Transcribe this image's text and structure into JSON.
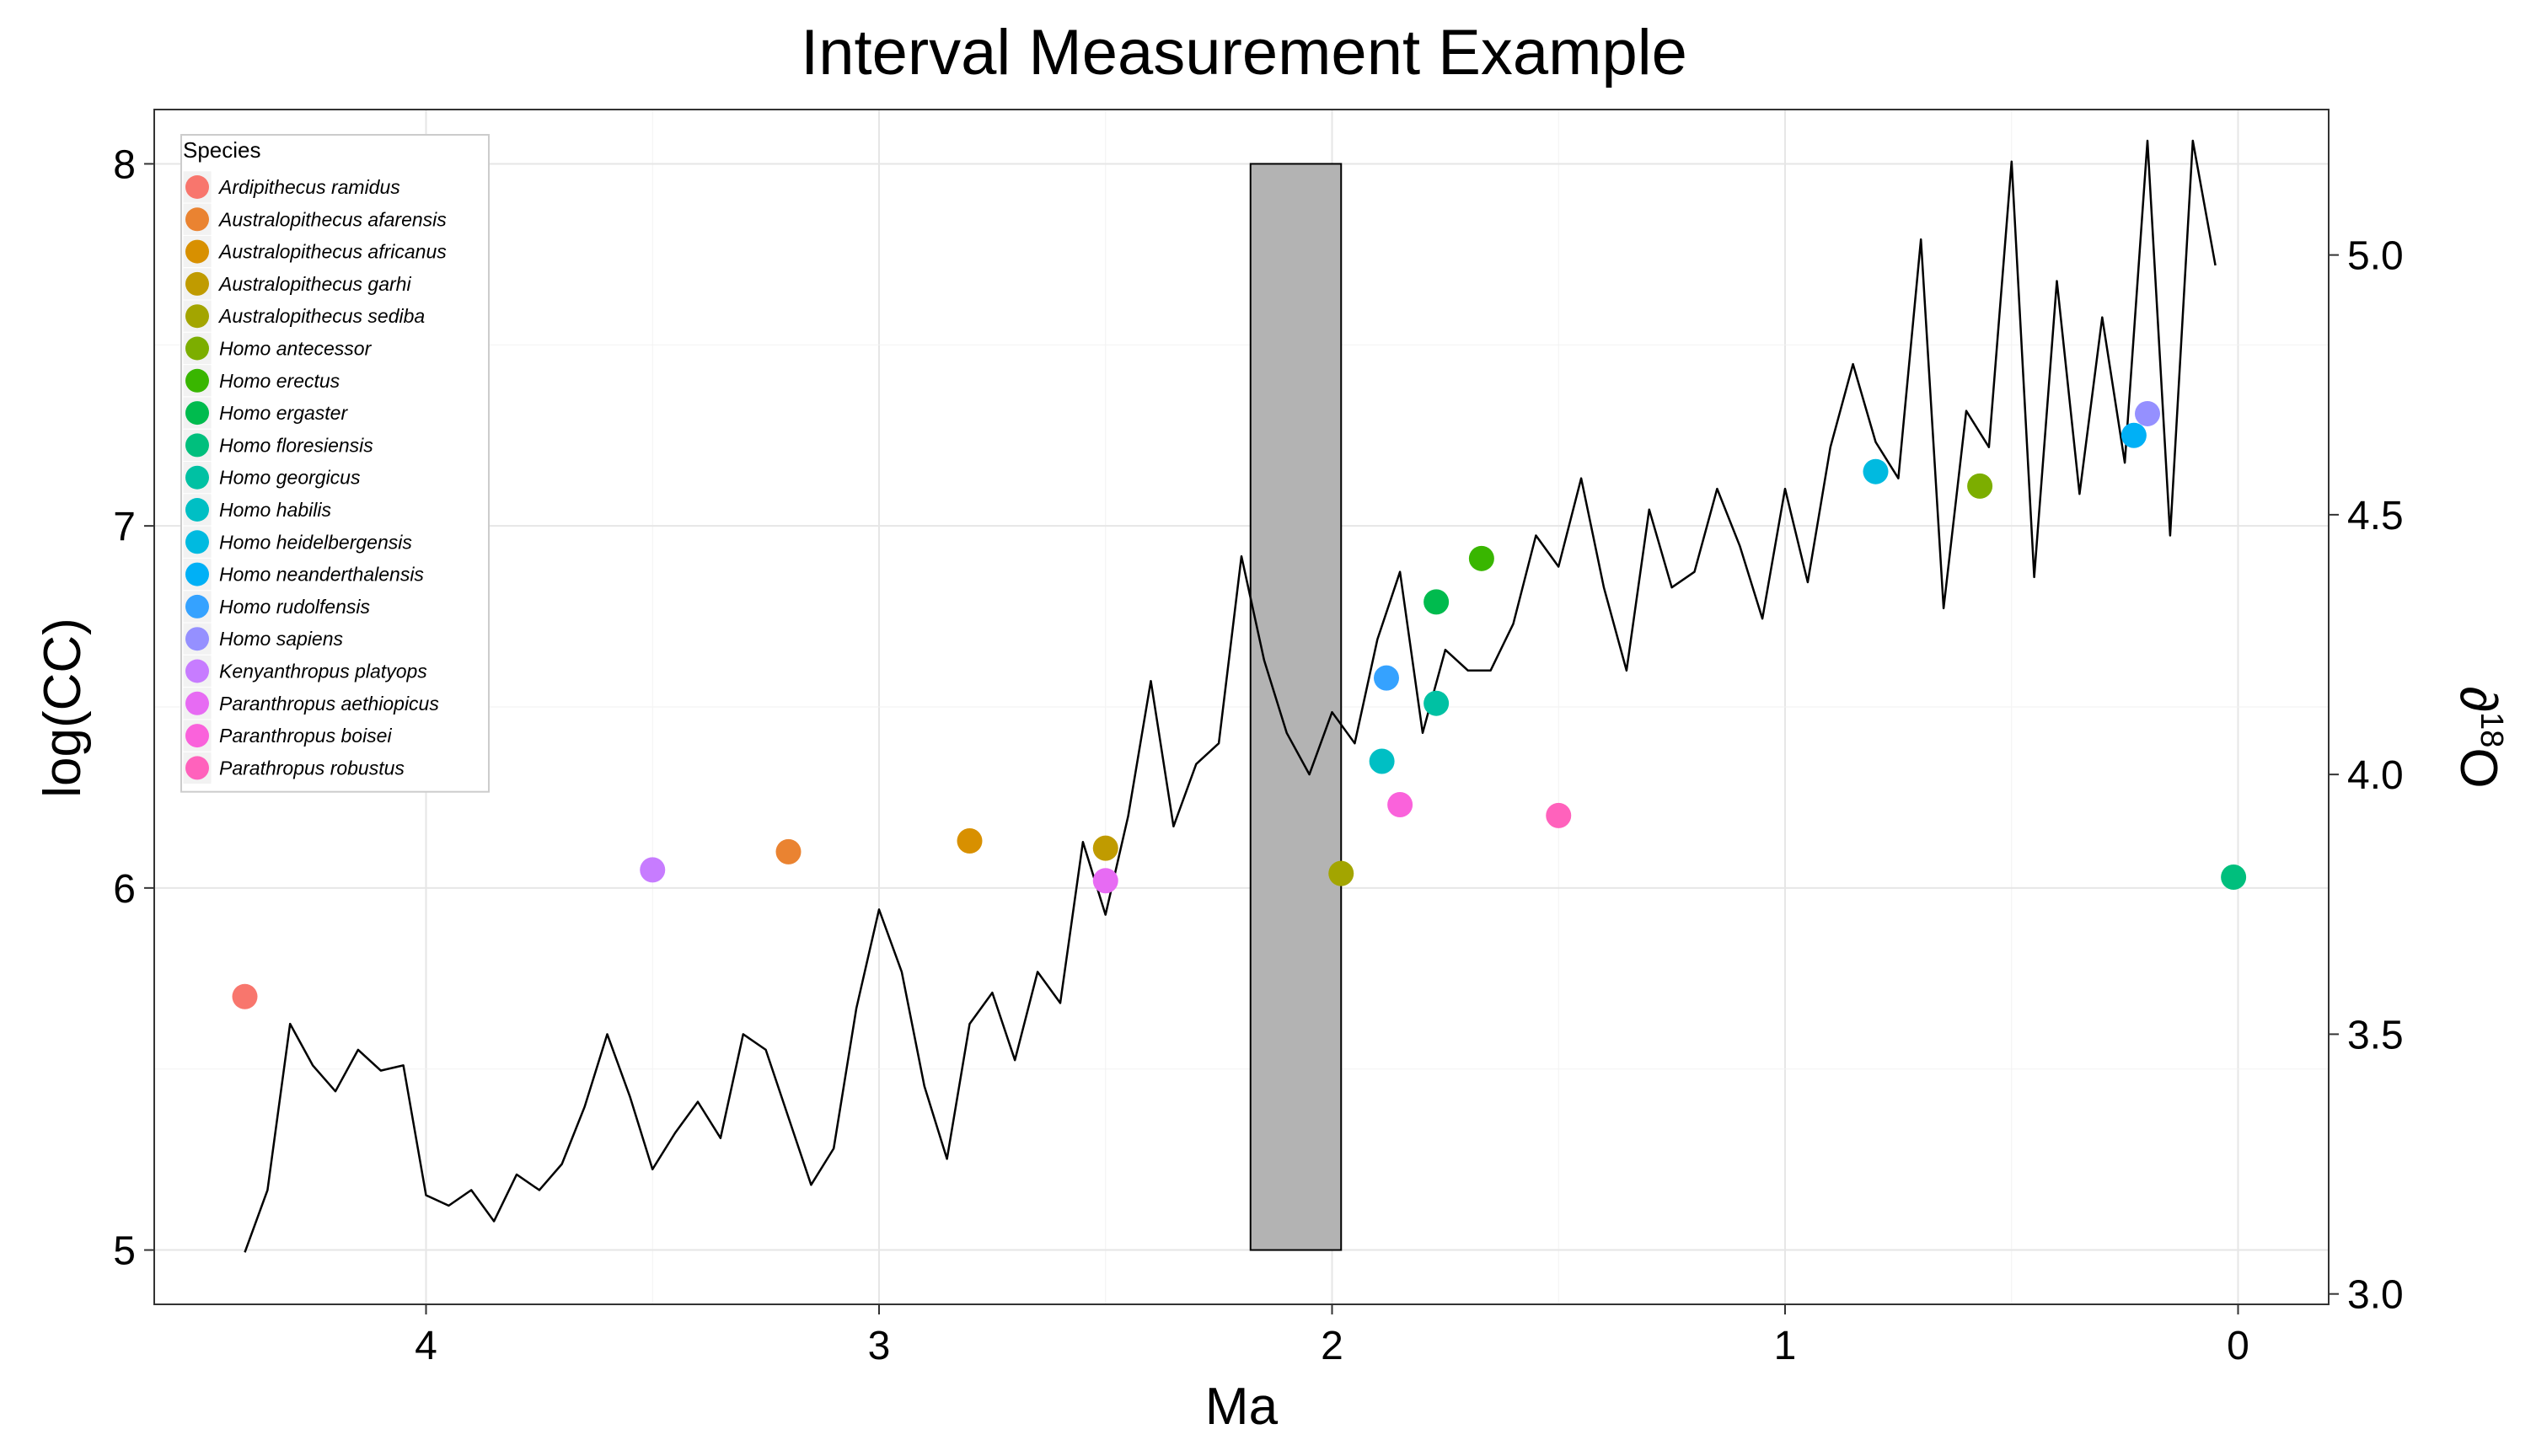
{
  "chart_data": {
    "type": "scatter",
    "title": "Interval Measurement Example",
    "xlabel": "Ma",
    "ylabel": "log(CC)",
    "y2label_base": "∂",
    "y2label_sup": "18",
    "y2label_end": "O",
    "xlim": [
      4.6,
      -0.2
    ],
    "ylim": [
      4.85,
      8.15
    ],
    "y2lim": [
      2.98,
      5.28
    ],
    "x_ticks": [
      "4",
      "3",
      "2",
      "1",
      "0"
    ],
    "x_tick_values": [
      4,
      3,
      2,
      1,
      0
    ],
    "y_ticks": [
      "5",
      "6",
      "7",
      "8"
    ],
    "y_tick_values": [
      5,
      6,
      7,
      8
    ],
    "y2_ticks": [
      "3.0",
      "3.5",
      "4.0",
      "4.5",
      "5.0"
    ],
    "y2_tick_values": [
      3.0,
      3.5,
      4.0,
      4.5,
      5.0
    ],
    "grid": true,
    "legend_position": "top-left",
    "legend_title": "Species",
    "interval_rect": {
      "x_start": 2.18,
      "x_end": 1.98,
      "y_min": 5,
      "y_max": 8,
      "fill": "#b3b3b3"
    },
    "series": [
      {
        "name": "Ardipithecus ramidus",
        "color": "#F8766D",
        "x": 4.4,
        "y": 5.7
      },
      {
        "name": "Australopithecus afarensis",
        "color": "#EA8331",
        "x": 3.2,
        "y": 6.1
      },
      {
        "name": "Australopithecus africanus",
        "color": "#D89000",
        "x": 2.8,
        "y": 6.13
      },
      {
        "name": "Australopithecus garhi",
        "color": "#C09B00",
        "x": 2.5,
        "y": 6.11
      },
      {
        "name": "Australopithecus sediba",
        "color": "#A3A500",
        "x": 1.98,
        "y": 6.04
      },
      {
        "name": "Homo antecessor",
        "color": "#7CAE00",
        "x": 0.57,
        "y": 7.11
      },
      {
        "name": "Homo erectus",
        "color": "#39B600",
        "x": 1.67,
        "y": 6.91
      },
      {
        "name": "Homo ergaster",
        "color": "#00BB4E",
        "x": 1.77,
        "y": 6.79
      },
      {
        "name": "Homo floresiensis",
        "color": "#00BF7D",
        "x": 0.01,
        "y": 6.03
      },
      {
        "name": "Homo georgicus",
        "color": "#00C1A3",
        "x": 1.77,
        "y": 6.51
      },
      {
        "name": "Homo habilis",
        "color": "#00BFC4",
        "x": 1.89,
        "y": 6.35
      },
      {
        "name": "Homo heidelbergensis",
        "color": "#00BAE0",
        "x": 0.8,
        "y": 7.15
      },
      {
        "name": "Homo neanderthalensis",
        "color": "#00B0F6",
        "x": 0.23,
        "y": 7.25
      },
      {
        "name": "Homo rudolfensis",
        "color": "#35A2FF",
        "x": 1.88,
        "y": 6.58
      },
      {
        "name": "Homo sapiens",
        "color": "#9590FF",
        "x": 0.2,
        "y": 7.31
      },
      {
        "name": "Kenyanthropus platyops",
        "color": "#C77CFF",
        "x": 3.5,
        "y": 6.05
      },
      {
        "name": "Paranthropus aethiopicus",
        "color": "#E76BF3",
        "x": 2.5,
        "y": 6.02
      },
      {
        "name": "Paranthropus boisei",
        "color": "#FA62DB",
        "x": 1.85,
        "y": 6.23
      },
      {
        "name": "Parathropus robustus",
        "color": "#FF62BC",
        "x": 1.5,
        "y": 6.2
      }
    ],
    "d18O_line": {
      "axis": "y2",
      "color": "#000000",
      "x": [
        4.4,
        4.35,
        4.3,
        4.25,
        4.2,
        4.15,
        4.1,
        4.05,
        4.0,
        3.95,
        3.9,
        3.85,
        3.8,
        3.75,
        3.7,
        3.65,
        3.6,
        3.55,
        3.5,
        3.45,
        3.4,
        3.35,
        3.3,
        3.25,
        3.2,
        3.15,
        3.1,
        3.05,
        3.0,
        2.95,
        2.9,
        2.85,
        2.8,
        2.75,
        2.7,
        2.65,
        2.6,
        2.55,
        2.5,
        2.45,
        2.4,
        2.35,
        2.3,
        2.25,
        2.2,
        2.15,
        2.1,
        2.05,
        2.0,
        1.95,
        1.9,
        1.85,
        1.8,
        1.75,
        1.7,
        1.65,
        1.6,
        1.55,
        1.5,
        1.45,
        1.4,
        1.35,
        1.3,
        1.25,
        1.2,
        1.15,
        1.1,
        1.05,
        1.0,
        0.95,
        0.9,
        0.85,
        0.8,
        0.75,
        0.7,
        0.65,
        0.6,
        0.55,
        0.5,
        0.45,
        0.4,
        0.35,
        0.3,
        0.25,
        0.2,
        0.15,
        0.1,
        0.05
      ],
      "y": [
        3.08,
        3.2,
        3.52,
        3.44,
        3.39,
        3.47,
        3.43,
        3.44,
        3.19,
        3.17,
        3.2,
        3.14,
        3.23,
        3.2,
        3.25,
        3.36,
        3.5,
        3.38,
        3.24,
        3.31,
        3.37,
        3.3,
        3.5,
        3.47,
        3.34,
        3.21,
        3.28,
        3.55,
        3.74,
        3.62,
        3.4,
        3.26,
        3.52,
        3.58,
        3.45,
        3.62,
        3.56,
        3.87,
        3.73,
        3.92,
        4.18,
        3.9,
        4.02,
        4.06,
        4.42,
        4.22,
        4.08,
        4.0,
        4.12,
        4.06,
        4.26,
        4.39,
        4.08,
        4.24,
        4.2,
        4.2,
        4.29,
        4.46,
        4.4,
        4.57,
        4.36,
        4.2,
        4.51,
        4.36,
        4.39,
        4.55,
        4.44,
        4.3,
        4.55,
        4.37,
        4.63,
        4.79,
        4.64,
        4.57,
        5.03,
        4.32,
        4.7,
        4.63,
        5.18,
        4.38,
        4.95,
        4.54,
        4.88,
        4.6,
        5.22,
        4.46,
        5.22,
        4.98
      ]
    }
  }
}
